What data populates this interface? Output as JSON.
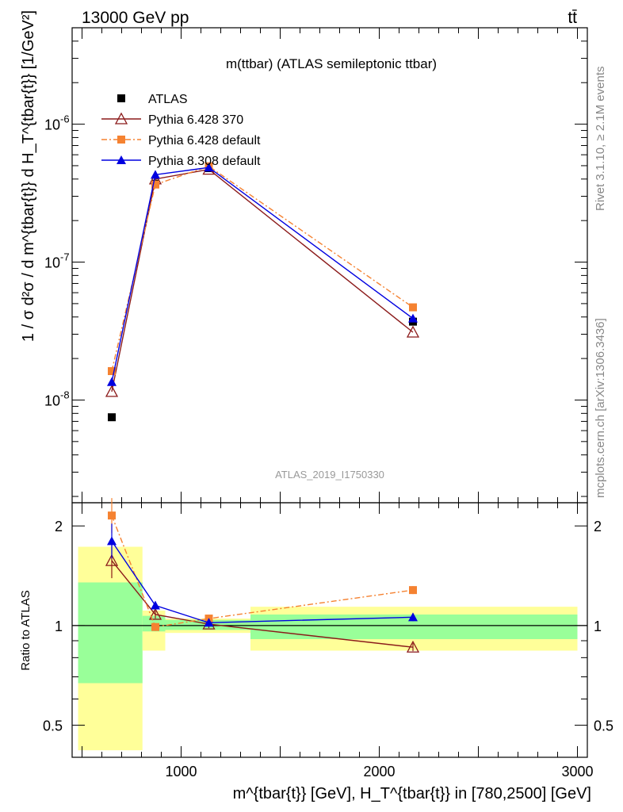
{
  "header": {
    "left": "13000 GeV pp",
    "right": "tt̄"
  },
  "side_labels": {
    "rivet": "Rivet 3.1.10, ≥ 2.1M events",
    "source": "mcplots.cern.ch [arXiv:1306.3436]"
  },
  "chart_data": [
    {
      "type": "line",
      "title": "m(ttbar) (ATLAS semileptonic ttbar)",
      "watermark": "ATLAS_2019_I1750330",
      "ylabel": "1 / σ d²σ / d m^{tbar{t}} d H_T^{tbar{t}} [1/GeV²]",
      "xlabel": "m^{tbar{t}} [GeV], H_T^{tbar{t}} in [780,2500] [GeV]",
      "xlim": [
        450,
        3050
      ],
      "ylim": [
        1.8e-09,
        5e-06
      ],
      "log_y": true,
      "y_ticks": [
        "10^-8",
        "10^-7",
        "10^-6"
      ],
      "x": [
        650,
        870,
        1140,
        2170
      ],
      "series": [
        {
          "name": "ATLAS",
          "values": [
            7.5e-09,
            3.7e-07,
            4.8e-07,
            3.7e-08
          ],
          "color": "#000000",
          "marker": "square"
        },
        {
          "name": "Pythia 6.428 370",
          "values": [
            1.15e-08,
            4e-07,
            4.7e-07,
            3.1e-08
          ],
          "color": "#8b1a1a",
          "marker": "open-triangle"
        },
        {
          "name": "Pythia 6.428 default",
          "values": [
            1.62e-08,
            3.65e-07,
            4.95e-07,
            4.7e-08
          ],
          "color": "#f58231",
          "marker": "square",
          "dash": "dash-dot"
        },
        {
          "name": "Pythia 8.308 default",
          "values": [
            1.35e-08,
            4.3e-07,
            4.85e-07,
            3.9e-08
          ],
          "color": "#0000e0",
          "marker": "triangle"
        }
      ]
    },
    {
      "type": "line",
      "ylabel": "Ratio to ATLAS",
      "xlim": [
        450,
        3050
      ],
      "ylim": [
        0.4,
        2.35
      ],
      "log_y": true,
      "x_ticks": [
        "1000",
        "2000",
        "3000"
      ],
      "y_ticks": [
        "0.5",
        "1",
        "2"
      ],
      "x": [
        650,
        870,
        1140,
        2170
      ],
      "series": [
        {
          "name": "Pythia 6.428 370",
          "values": [
            1.57,
            1.08,
            1.01,
            0.86
          ],
          "color": "#8b1a1a"
        },
        {
          "name": "Pythia 6.428 default",
          "values": [
            2.15,
            0.99,
            1.05,
            1.28
          ],
          "color": "#f58231"
        },
        {
          "name": "Pythia 8.308 default",
          "values": [
            1.8,
            1.15,
            1.02,
            1.06
          ],
          "color": "#0000e0"
        }
      ],
      "uncertainty_bands": [
        {
          "x_range": [
            480,
            805
          ],
          "stat": [
            0.67,
            1.35
          ],
          "total": [
            0.42,
            1.73
          ]
        },
        {
          "x_range": [
            805,
            920
          ],
          "stat": [
            0.96,
            1.07
          ],
          "total": [
            0.84,
            1.11
          ]
        },
        {
          "x_range": [
            920,
            1350
          ],
          "stat": [
            0.97,
            1.04
          ],
          "total": [
            0.95,
            1.05
          ]
        },
        {
          "x_range": [
            1350,
            3000
          ],
          "stat": [
            0.91,
            1.08
          ],
          "total": [
            0.84,
            1.14
          ]
        }
      ]
    }
  ]
}
